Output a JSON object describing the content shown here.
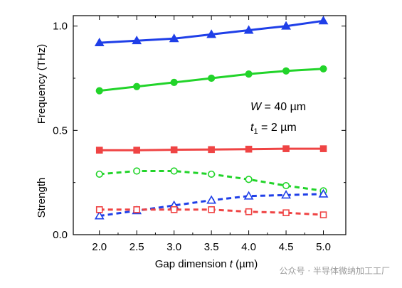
{
  "chart_data": {
    "type": "line",
    "xlabel_prefix": "Gap dimension ",
    "xlabel_var": "t",
    "xlabel_suffix": " (µm)",
    "ylabel_top": "Frequency (THz)",
    "ylabel_bottom": "Strength",
    "xlim": [
      1.65,
      5.3
    ],
    "ylim": [
      0,
      1.05
    ],
    "x_ticks": [
      "2.0",
      "2.5",
      "3.0",
      "3.5",
      "4.0",
      "4.5",
      "5.0"
    ],
    "y_ticks": [
      "0.0",
      "0.5",
      "1.0"
    ],
    "x": [
      2.0,
      2.5,
      3.0,
      3.5,
      4.0,
      4.5,
      5.0
    ],
    "series": [
      {
        "values": [
          0.92,
          0.93,
          0.94,
          0.96,
          0.98,
          1.0,
          1.025
        ],
        "color": "#1f3fe8",
        "marker": "triangle",
        "filled": true,
        "dashed": false
      },
      {
        "values": [
          0.69,
          0.71,
          0.73,
          0.75,
          0.77,
          0.785,
          0.795
        ],
        "color": "#22d42a",
        "marker": "circle",
        "filled": true,
        "dashed": false
      },
      {
        "values": [
          0.405,
          0.405,
          0.407,
          0.408,
          0.41,
          0.412,
          0.412
        ],
        "color": "#ef4444",
        "marker": "square",
        "filled": true,
        "dashed": false
      },
      {
        "values": [
          0.29,
          0.305,
          0.305,
          0.29,
          0.265,
          0.235,
          0.21
        ],
        "color": "#22d42a",
        "marker": "circle",
        "filled": false,
        "dashed": true
      },
      {
        "values": [
          0.09,
          0.115,
          0.14,
          0.165,
          0.185,
          0.19,
          0.195
        ],
        "color": "#1f3fe8",
        "marker": "triangle",
        "filled": false,
        "dashed": true
      },
      {
        "values": [
          0.12,
          0.12,
          0.12,
          0.12,
          0.11,
          0.105,
          0.095
        ],
        "color": "#ef4444",
        "marker": "square",
        "filled": false,
        "dashed": true
      }
    ],
    "annotations": {
      "w_var": "W",
      "w_text": " = 40 µm",
      "t_var": "t",
      "t_sub": "1",
      "t_text": " = 2 µm"
    }
  },
  "watermark": "公众号 · 半导体微纳加工工厂"
}
